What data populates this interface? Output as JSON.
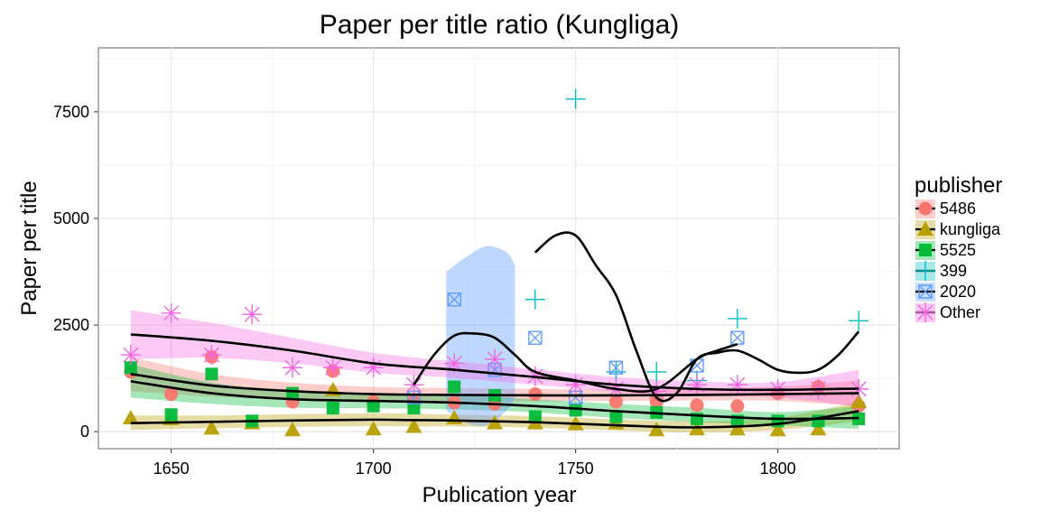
{
  "chart_data": {
    "type": "scatter",
    "title": "Paper per title ratio (Kungliga)",
    "xlabel": "Publication year",
    "ylabel": "Paper per title",
    "xlim": [
      1632,
      1830
    ],
    "ylim": [
      -400,
      9000
    ],
    "xticks": [
      1650,
      1700,
      1750,
      1800
    ],
    "yticks": [
      0,
      2500,
      5000,
      7500
    ],
    "grid": true,
    "legend_title": "publisher",
    "legend_position": "right",
    "series": [
      {
        "name": "5486",
        "color": "#F8766D",
        "shape": "circle",
        "points": [
          [
            1640,
            1400
          ],
          [
            1650,
            880
          ],
          [
            1660,
            1750
          ],
          [
            1680,
            700
          ],
          [
            1690,
            1420
          ],
          [
            1700,
            700
          ],
          [
            1710,
            700
          ],
          [
            1720,
            680
          ],
          [
            1730,
            650
          ],
          [
            1740,
            880
          ],
          [
            1760,
            700
          ],
          [
            1770,
            700
          ],
          [
            1780,
            620
          ],
          [
            1790,
            600
          ],
          [
            1800,
            900
          ],
          [
            1810,
            1050
          ],
          [
            1820,
            600
          ]
        ],
        "trend": [
          [
            1640,
            1350
          ],
          [
            1660,
            1080
          ],
          [
            1680,
            950
          ],
          [
            1700,
            880
          ],
          [
            1720,
            860
          ],
          [
            1740,
            850
          ],
          [
            1760,
            850
          ],
          [
            1780,
            860
          ],
          [
            1800,
            880
          ],
          [
            1820,
            900
          ]
        ],
        "band": [
          [
            1640,
            1750,
            950
          ],
          [
            1660,
            1350,
            820
          ],
          [
            1680,
            1150,
            760
          ],
          [
            1700,
            1050,
            720
          ],
          [
            1720,
            1020,
            710
          ],
          [
            1740,
            1000,
            710
          ],
          [
            1760,
            990,
            720
          ],
          [
            1780,
            1000,
            730
          ],
          [
            1800,
            1050,
            720
          ],
          [
            1820,
            1200,
            600
          ]
        ]
      },
      {
        "name": "kungliga",
        "color": "#B79F00",
        "shape": "triangle",
        "points": [
          [
            1640,
            320
          ],
          [
            1650,
            300
          ],
          [
            1660,
            80
          ],
          [
            1670,
            200
          ],
          [
            1680,
            40
          ],
          [
            1690,
            980
          ],
          [
            1700,
            60
          ],
          [
            1710,
            120
          ],
          [
            1720,
            320
          ],
          [
            1730,
            200
          ],
          [
            1740,
            200
          ],
          [
            1750,
            180
          ],
          [
            1760,
            200
          ],
          [
            1770,
            40
          ],
          [
            1780,
            60
          ],
          [
            1790,
            60
          ],
          [
            1800,
            40
          ],
          [
            1810,
            60
          ],
          [
            1820,
            700
          ]
        ],
        "trend": [
          [
            1640,
            200
          ],
          [
            1660,
            230
          ],
          [
            1680,
            260
          ],
          [
            1700,
            280
          ],
          [
            1710,
            270
          ],
          [
            1720,
            260
          ],
          [
            1740,
            220
          ],
          [
            1760,
            150
          ],
          [
            1780,
            100
          ],
          [
            1800,
            180
          ],
          [
            1820,
            480
          ]
        ],
        "band": [
          [
            1640,
            380,
            40
          ],
          [
            1660,
            380,
            80
          ],
          [
            1680,
            410,
            110
          ],
          [
            1700,
            430,
            130
          ],
          [
            1710,
            420,
            120
          ],
          [
            1720,
            400,
            120
          ],
          [
            1740,
            360,
            90
          ],
          [
            1760,
            290,
            30
          ],
          [
            1780,
            240,
            -20
          ],
          [
            1800,
            330,
            40
          ],
          [
            1820,
            700,
            240
          ]
        ]
      },
      {
        "name": "5525",
        "color": "#00BA38",
        "shape": "square",
        "points": [
          [
            1640,
            1500
          ],
          [
            1650,
            400
          ],
          [
            1660,
            1350
          ],
          [
            1670,
            250
          ],
          [
            1680,
            900
          ],
          [
            1690,
            550
          ],
          [
            1700,
            600
          ],
          [
            1710,
            550
          ],
          [
            1720,
            1050
          ],
          [
            1730,
            850
          ],
          [
            1740,
            350
          ],
          [
            1750,
            500
          ],
          [
            1760,
            350
          ],
          [
            1770,
            450
          ],
          [
            1780,
            300
          ],
          [
            1790,
            250
          ],
          [
            1800,
            250
          ],
          [
            1810,
            250
          ],
          [
            1820,
            300
          ]
        ],
        "trend": [
          [
            1640,
            1180
          ],
          [
            1660,
            900
          ],
          [
            1680,
            760
          ],
          [
            1700,
            720
          ],
          [
            1720,
            680
          ],
          [
            1740,
            600
          ],
          [
            1760,
            480
          ],
          [
            1780,
            380
          ],
          [
            1800,
            300
          ],
          [
            1820,
            320
          ]
        ],
        "band": [
          [
            1640,
            1580,
            800
          ],
          [
            1660,
            1150,
            650
          ],
          [
            1680,
            970,
            560
          ],
          [
            1700,
            900,
            550
          ],
          [
            1720,
            860,
            520
          ],
          [
            1740,
            760,
            450
          ],
          [
            1760,
            650,
            320
          ],
          [
            1780,
            560,
            220
          ],
          [
            1800,
            460,
            150
          ],
          [
            1820,
            600,
            60
          ]
        ]
      },
      {
        "name": "399",
        "color": "#00BFC4",
        "shape": "plus",
        "points": [
          [
            1740,
            3100
          ],
          [
            1750,
            7800
          ],
          [
            1760,
            1400
          ],
          [
            1770,
            1400
          ],
          [
            1780,
            1200
          ],
          [
            1790,
            2650
          ],
          [
            1800,
            1000
          ],
          [
            1820,
            2600
          ]
        ],
        "trend": [
          [
            1740,
            4200
          ],
          [
            1745,
            4600
          ],
          [
            1750,
            4600
          ],
          [
            1755,
            3900
          ],
          [
            1760,
            3200
          ],
          [
            1765,
            1900
          ],
          [
            1770,
            800
          ],
          [
            1775,
            900
          ],
          [
            1780,
            1700
          ],
          [
            1785,
            1850
          ],
          [
            1790,
            1900
          ],
          [
            1795,
            1700
          ],
          [
            1800,
            1450
          ],
          [
            1805,
            1380
          ],
          [
            1810,
            1450
          ],
          [
            1815,
            1800
          ],
          [
            1820,
            2350
          ]
        ]
      },
      {
        "name": "2020",
        "color": "#619CFF",
        "shape": "square-x",
        "points": [
          [
            1710,
            800
          ],
          [
            1720,
            3100
          ],
          [
            1730,
            1450
          ],
          [
            1740,
            2200
          ],
          [
            1750,
            800
          ],
          [
            1760,
            1500
          ],
          [
            1780,
            1550
          ],
          [
            1790,
            2200
          ]
        ],
        "trend": [
          [
            1710,
            1100
          ],
          [
            1715,
            1800
          ],
          [
            1720,
            2250
          ],
          [
            1725,
            2300
          ],
          [
            1730,
            2200
          ],
          [
            1735,
            1800
          ],
          [
            1740,
            1400
          ],
          [
            1750,
            1200
          ],
          [
            1760,
            1000
          ],
          [
            1770,
            1000
          ],
          [
            1780,
            1700
          ],
          [
            1785,
            1900
          ],
          [
            1790,
            2050
          ]
        ],
        "band": [
          [
            1718,
            3750,
            500
          ],
          [
            1723,
            4100,
            200
          ],
          [
            1728,
            4350,
            150
          ],
          [
            1733,
            4200,
            500
          ],
          [
            1735,
            3900,
            800
          ]
        ]
      },
      {
        "name": "Other",
        "color": "#F564E3",
        "shape": "star",
        "points": [
          [
            1640,
            1800
          ],
          [
            1650,
            2780
          ],
          [
            1660,
            1800
          ],
          [
            1670,
            2750
          ],
          [
            1680,
            1500
          ],
          [
            1690,
            1500
          ],
          [
            1700,
            1500
          ],
          [
            1710,
            1100
          ],
          [
            1720,
            1600
          ],
          [
            1730,
            1700
          ],
          [
            1740,
            1300
          ],
          [
            1750,
            1100
          ],
          [
            1760,
            1000
          ],
          [
            1770,
            950
          ],
          [
            1780,
            1100
          ],
          [
            1790,
            1100
          ],
          [
            1800,
            1000
          ],
          [
            1810,
            1000
          ],
          [
            1820,
            1000
          ]
        ],
        "trend": [
          [
            1640,
            2280
          ],
          [
            1660,
            2130
          ],
          [
            1680,
            1900
          ],
          [
            1700,
            1600
          ],
          [
            1720,
            1450
          ],
          [
            1740,
            1280
          ],
          [
            1760,
            1100
          ],
          [
            1780,
            1000
          ],
          [
            1800,
            980
          ],
          [
            1820,
            1010
          ]
        ],
        "band": [
          [
            1640,
            2850,
            1700
          ],
          [
            1660,
            2550,
            1730
          ],
          [
            1680,
            2200,
            1600
          ],
          [
            1700,
            1850,
            1380
          ],
          [
            1720,
            1650,
            1260
          ],
          [
            1740,
            1460,
            1100
          ],
          [
            1760,
            1280,
            930
          ],
          [
            1780,
            1180,
            830
          ],
          [
            1800,
            1160,
            800
          ],
          [
            1820,
            1450,
            580
          ]
        ]
      }
    ]
  }
}
